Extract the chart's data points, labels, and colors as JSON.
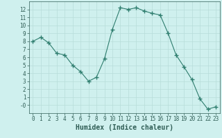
{
  "x": [
    0,
    1,
    2,
    3,
    4,
    5,
    6,
    7,
    8,
    9,
    10,
    11,
    12,
    13,
    14,
    15,
    16,
    17,
    18,
    19,
    20,
    21,
    22,
    23
  ],
  "y": [
    8.0,
    8.5,
    7.8,
    6.5,
    6.3,
    5.0,
    4.2,
    3.0,
    3.5,
    5.8,
    9.5,
    12.2,
    12.0,
    12.2,
    11.8,
    11.5,
    11.3,
    9.0,
    6.3,
    4.8,
    3.2,
    0.8,
    -0.5,
    -0.2
  ],
  "line_color": "#2e7d6e",
  "marker": "+",
  "marker_size": 4,
  "bg_color": "#cff0ee",
  "grid_color": "#b8ddd9",
  "xlabel": "Humidex (Indice chaleur)",
  "ylim": [
    -1,
    13
  ],
  "xlim": [
    -0.5,
    23.5
  ],
  "yticks": [
    0,
    1,
    2,
    3,
    4,
    5,
    6,
    7,
    8,
    9,
    10,
    11,
    12
  ],
  "ytick_labels": [
    "-0",
    "1",
    "2",
    "3",
    "4",
    "5",
    "6",
    "7",
    "8",
    "9",
    "10",
    "11",
    "12"
  ],
  "xticks": [
    0,
    1,
    2,
    3,
    4,
    5,
    6,
    7,
    8,
    9,
    10,
    11,
    12,
    13,
    14,
    15,
    16,
    17,
    18,
    19,
    20,
    21,
    22,
    23
  ],
  "tick_label_color": "#2e5c54",
  "axis_color": "#2e5c54",
  "xlabel_fontsize": 7,
  "tick_fontsize": 5.5
}
